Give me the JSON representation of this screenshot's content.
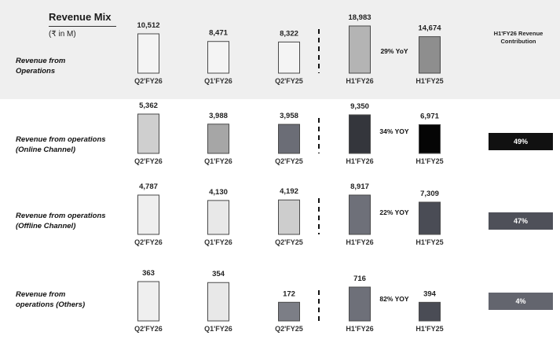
{
  "header": {
    "title": "Revenue Mix",
    "unit": "(₹ in M)",
    "contribution_heading": "H1'FY26 Revenue Contribution"
  },
  "chart_data": [
    {
      "type": "bar",
      "label": "Revenue from Operations",
      "categories": [
        "Q2'FY26",
        "Q1'FY26",
        "Q2'FY25",
        "H1'FY26",
        "H1'FY25"
      ],
      "values": [
        10512,
        8471,
        8322,
        18983,
        14674
      ],
      "value_labels": [
        "10,512",
        "8,471",
        "8,322",
        "18,983",
        "14,674"
      ],
      "yoy": "29% YoY",
      "contribution": null,
      "colors": [
        "#f4f4f4",
        "#f4f4f4",
        "#f4f4f4",
        "#b4b4b4",
        "#8e8e8e"
      ]
    },
    {
      "type": "bar",
      "label": "Revenue from operations (Online Channel)",
      "categories": [
        "Q2'FY26",
        "Q1'FY26",
        "Q2'FY25",
        "H1'FY26",
        "H1'FY25"
      ],
      "values": [
        5362,
        3988,
        3958,
        9350,
        6971
      ],
      "value_labels": [
        "5,362",
        "3,988",
        "3,958",
        "9,350",
        "6,971"
      ],
      "yoy": "34% YOY",
      "contribution": "49%",
      "badge_color": "#111111",
      "colors": [
        "#cfcfcf",
        "#a6a6a6",
        "#6b6d76",
        "#34363c",
        "#050505"
      ]
    },
    {
      "type": "bar",
      "label": "Revenue from operations (Offline Channel)",
      "categories": [
        "Q2'FY26",
        "Q1'FY26",
        "Q2'FY25",
        "H1'FY26",
        "H1'FY25"
      ],
      "values": [
        4787,
        4130,
        4192,
        8917,
        7309
      ],
      "value_labels": [
        "4,787",
        "4,130",
        "4,192",
        "8,917",
        "7,309"
      ],
      "yoy": "22% YOY",
      "contribution": "47%",
      "badge_color": "#4e5059",
      "colors": [
        "#efefef",
        "#e8e8e8",
        "#cdcdcd",
        "#6e7079",
        "#4a4c55"
      ]
    },
    {
      "type": "bar",
      "label": "Revenue from operations (Others)",
      "categories": [
        "Q2'FY26",
        "Q1'FY26",
        "Q2'FY25",
        "H1'FY26",
        "H1'FY25"
      ],
      "values": [
        363,
        354,
        172,
        716,
        394
      ],
      "value_labels": [
        "363",
        "354",
        "172",
        "716",
        "394"
      ],
      "yoy": "82% YOY",
      "contribution": "4%",
      "badge_color": "#63656e",
      "colors": [
        "#efefef",
        "#e8e8e8",
        "#7c7e86",
        "#6e7079",
        "#4a4c55"
      ]
    }
  ]
}
